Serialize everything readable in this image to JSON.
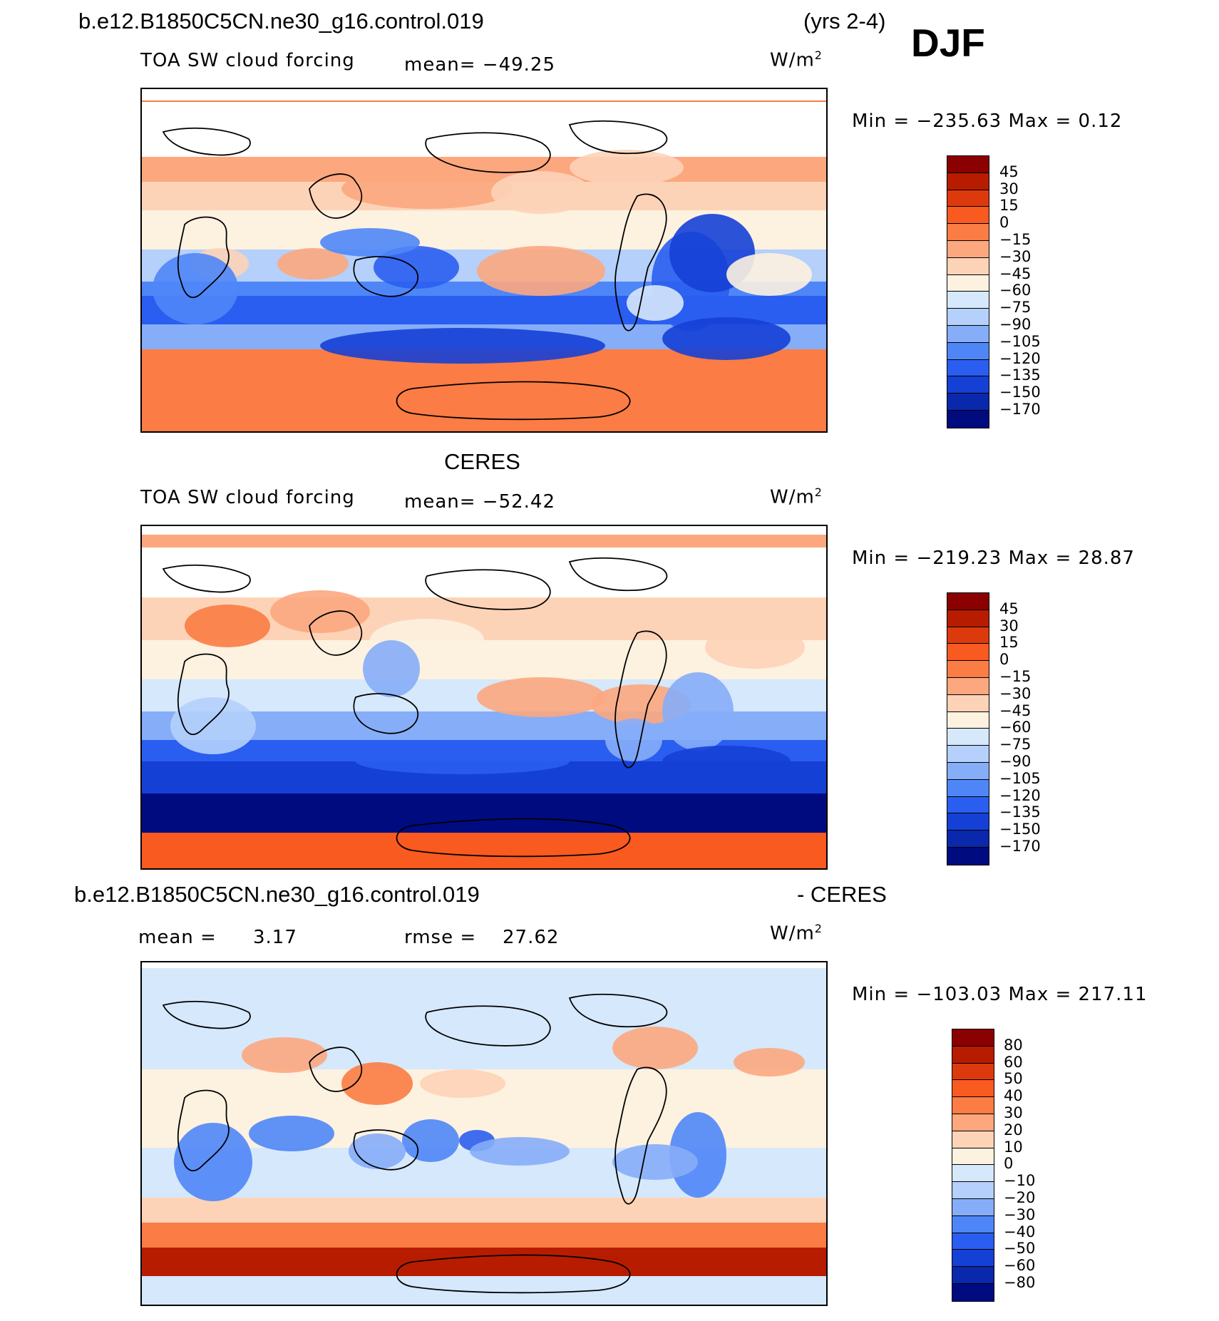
{
  "header": {
    "case_name": "b.e12.B1850C5CN.ne30_g16.control.019",
    "years": "(yrs 2-4)",
    "season": "DJF"
  },
  "panels": [
    {
      "title": "",
      "field": "TOA SW cloud forcing",
      "mean": "mean= −49.25",
      "units": "W/m",
      "units_exp": "2",
      "minmax": "Min = −235.63 Max =   0.12",
      "colorbar": [
        "45",
        "30",
        "15",
        "0",
        "−15",
        "−30",
        "−45",
        "−60",
        "−75",
        "−90",
        "−105",
        "−120",
        "−135",
        "−150",
        "−170"
      ]
    },
    {
      "title": "CERES",
      "field": "TOA SW cloud forcing",
      "mean": "mean= −52.42",
      "units": "W/m",
      "units_exp": "2",
      "minmax": "Min = −219.23 Max =  28.87",
      "colorbar": [
        "45",
        "30",
        "15",
        "0",
        "−15",
        "−30",
        "−45",
        "−60",
        "−75",
        "−90",
        "−105",
        "−120",
        "−135",
        "−150",
        "−170"
      ]
    },
    {
      "title_left": "b.e12.B1850C5CN.ne30_g16.control.019",
      "title_right": "- CERES",
      "mean_label": "mean =",
      "mean_value": "3.17",
      "rmse_label": "rmse =",
      "rmse_value": "27.62",
      "units": "W/m",
      "units_exp": "2",
      "minmax": "Min = −103.03 Max = 217.11",
      "colorbar": [
        "80",
        "60",
        "50",
        "40",
        "30",
        "20",
        "10",
        "0",
        "−10",
        "−20",
        "−30",
        "−40",
        "−50",
        "−60",
        "−80"
      ]
    }
  ],
  "colors": {
    "scale16": [
      "#8b0000",
      "#b81c00",
      "#dc3a0d",
      "#f95a1f",
      "#fb7c44",
      "#fca77e",
      "#fdd3b7",
      "#fdf1e0",
      "#d6e8fb",
      "#b4d0fb",
      "#86adf8",
      "#4f86f7",
      "#2a5ef0",
      "#1540d6",
      "#0a28ab",
      "#000b80"
    ],
    "map_border": "#000000",
    "coast": "#000000"
  }
}
